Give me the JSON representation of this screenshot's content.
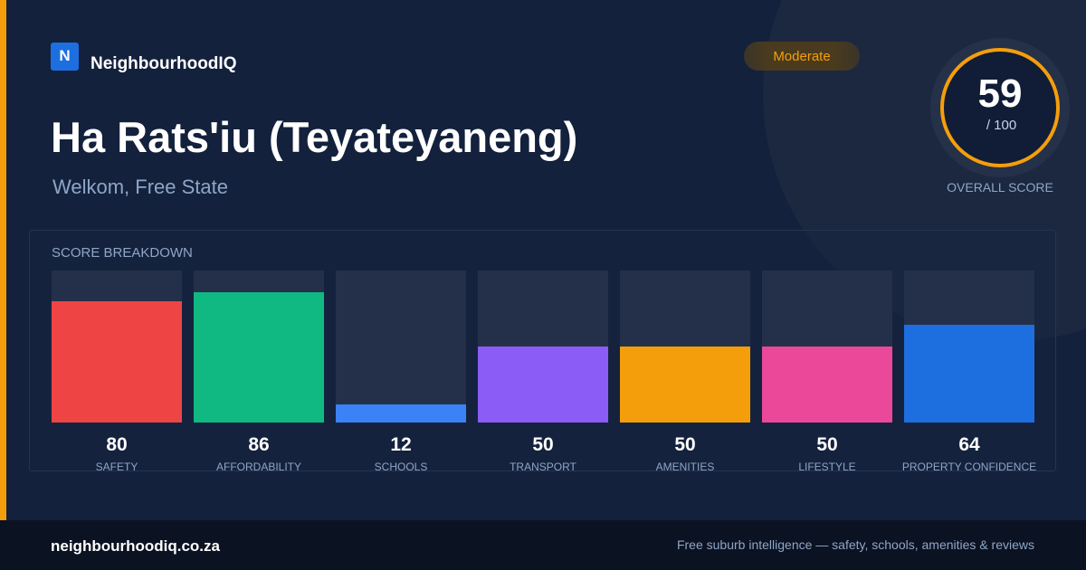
{
  "brand": {
    "mark": "N",
    "name": "NeighbourhoodIQ",
    "accent_color": "#f59e0b",
    "mark_color": "#1d6fe0"
  },
  "badge": {
    "label": "Moderate",
    "color": "#f59e0b"
  },
  "suburb": {
    "name": "Ha Rats'iu (Teyateyaneng)",
    "location": "Welkom, Free State"
  },
  "overall": {
    "score": "59",
    "max": "/ 100",
    "label": "OVERALL SCORE",
    "fraction": 0.59,
    "ring_color": "#f59e0b"
  },
  "breakdown": {
    "title": "SCORE BREAKDOWN",
    "items": [
      {
        "label": "SAFETY",
        "value": "80",
        "fraction": 0.8,
        "color": "#ef4444"
      },
      {
        "label": "AFFORDABILITY",
        "value": "86",
        "fraction": 0.86,
        "color": "#10b981"
      },
      {
        "label": "SCHOOLS",
        "value": "12",
        "fraction": 0.12,
        "color": "#3b82f6"
      },
      {
        "label": "TRANSPORT",
        "value": "50",
        "fraction": 0.5,
        "color": "#8b5cf6"
      },
      {
        "label": "AMENITIES",
        "value": "50",
        "fraction": 0.5,
        "color": "#f59e0b"
      },
      {
        "label": "LIFESTYLE",
        "value": "50",
        "fraction": 0.5,
        "color": "#ec4899"
      },
      {
        "label": "PROPERTY CONFIDENCE",
        "value": "64",
        "fraction": 0.64,
        "color": "#1d6fe0"
      }
    ]
  },
  "footer": {
    "domain": "neighbourhoodiq.co.za",
    "tagline": "Free suburb intelligence — safety, schools, amenities & reviews"
  }
}
